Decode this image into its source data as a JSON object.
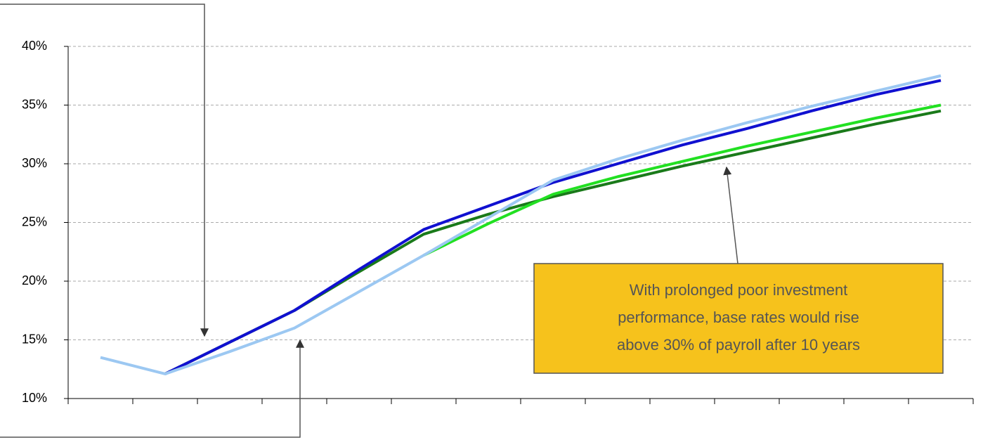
{
  "chart_data": {
    "type": "line",
    "categories": [
      null,
      null,
      null,
      null,
      null,
      null,
      null,
      null,
      null,
      null,
      null,
      null,
      null,
      null
    ],
    "series": [
      {
        "color": "#1a7a1a",
        "values": [
          null,
          12.1,
          14.8,
          17.5,
          20.8,
          24.0,
          25.7,
          27.2,
          28.5,
          29.8,
          31.0,
          32.2,
          33.4,
          34.5
        ]
      },
      {
        "color": "#22e022",
        "values": [
          null,
          null,
          null,
          null,
          null,
          22.2,
          24.9,
          27.4,
          28.9,
          30.2,
          31.5,
          32.7,
          33.9,
          35.0
        ]
      },
      {
        "color": "#1010d0",
        "values": [
          null,
          12.1,
          14.8,
          17.5,
          21.0,
          24.4,
          26.4,
          28.4,
          30.0,
          31.6,
          33.0,
          34.5,
          35.9,
          37.1
        ]
      },
      {
        "color": "#9cc8f2",
        "values": [
          13.5,
          12.1,
          14.0,
          16.0,
          19.1,
          22.2,
          25.4,
          28.6,
          30.4,
          32.0,
          33.5,
          34.9,
          36.2,
          37.5
        ]
      }
    ],
    "ylim": [
      10,
      40
    ],
    "yticks": [
      {
        "value": 10,
        "label": "10%"
      },
      {
        "value": 15,
        "label": "15%"
      },
      {
        "value": 20,
        "label": "20%"
      },
      {
        "value": 25,
        "label": "25%"
      },
      {
        "value": 30,
        "label": "30%"
      },
      {
        "value": 35,
        "label": "35%"
      },
      {
        "value": 40,
        "label": "40%"
      }
    ],
    "grid": true,
    "annotation": [
      "With prolonged poor investment",
      "performance, base rates would rise",
      "above 30% of payroll after 10 years"
    ]
  }
}
